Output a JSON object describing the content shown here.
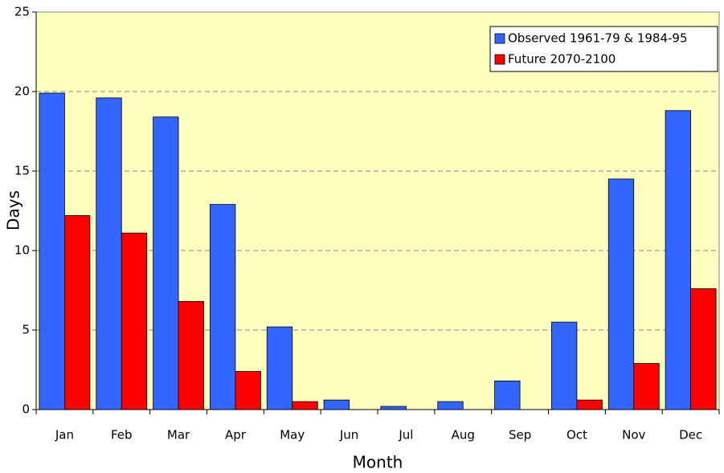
{
  "chart_data": {
    "type": "bar",
    "x_label": "Month",
    "y_label": "Days",
    "categories": [
      "Jan",
      "Feb",
      "Mar",
      "Apr",
      "May",
      "Jun",
      "Jul",
      "Aug",
      "Sep",
      "Oct",
      "Nov",
      "Dec"
    ],
    "series": [
      {
        "name": "Observed 1961-79 & 1984-95",
        "color": "#3366ff",
        "values": [
          19.9,
          19.6,
          18.4,
          12.9,
          5.2,
          0.6,
          0.2,
          0.5,
          1.8,
          5.5,
          14.5,
          18.8
        ]
      },
      {
        "name": "Future 2070-2100",
        "color": "#ff0000",
        "values": [
          12.2,
          11.1,
          6.8,
          2.4,
          0.5,
          0,
          0,
          0,
          0,
          0.6,
          2.9,
          7.6
        ]
      }
    ],
    "ylim": [
      0,
      25
    ],
    "yticks": [
      0,
      5,
      10,
      15,
      20,
      25
    ],
    "grid": true,
    "background": "#ffffc0",
    "legend": "top-right"
  }
}
